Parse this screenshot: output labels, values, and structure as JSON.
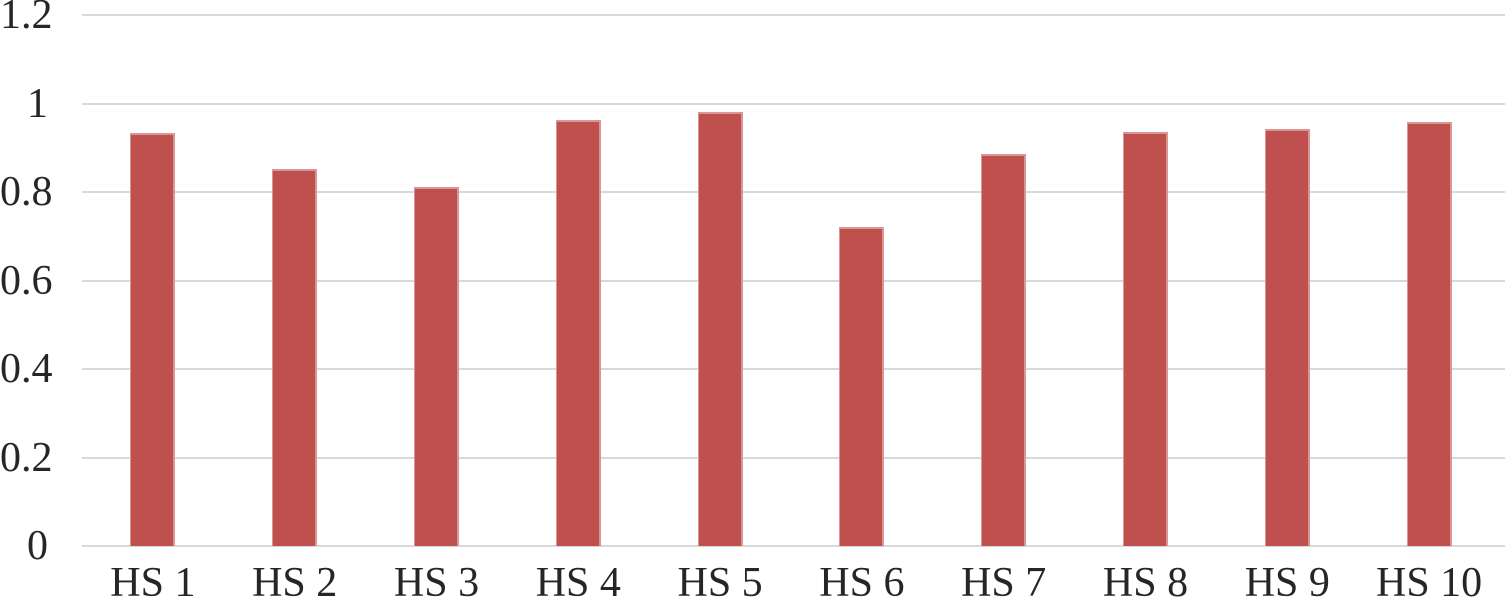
{
  "chart_data": {
    "type": "bar",
    "title": "",
    "xlabel": "",
    "ylabel": "",
    "categories": [
      "HS 1",
      "HS 2",
      "HS 3",
      "HS 4",
      "HS 5",
      "HS 6",
      "HS 7",
      "HS 8",
      "HS 9",
      "HS 10"
    ],
    "values": [
      0.933,
      0.852,
      0.811,
      0.963,
      0.981,
      0.721,
      0.886,
      0.936,
      0.943,
      0.958
    ],
    "ylim": [
      0,
      1.2
    ],
    "ytick_step": 0.2,
    "yticks": [
      0,
      0.2,
      0.4,
      0.6,
      0.8,
      1,
      1.2
    ],
    "ytick_labels": [
      "0",
      "0.2",
      "0.4",
      "0.6",
      "0.8",
      "1",
      "1.2"
    ],
    "grid": true,
    "legend": false,
    "colors": {
      "bar_fill": "#c0504d",
      "bar_border": "#d99694",
      "gridline": "#d9d9d9",
      "text": "#262626",
      "background": "#ffffff"
    }
  }
}
